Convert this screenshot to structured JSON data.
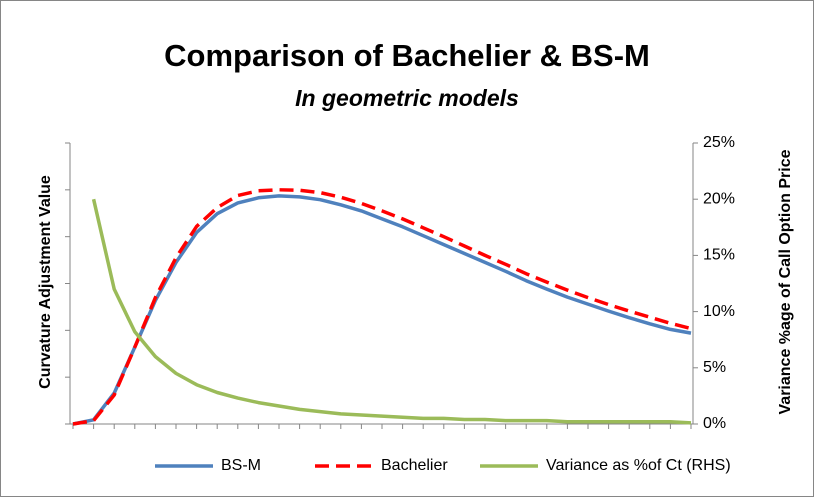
{
  "chart_data": {
    "type": "line",
    "title": "Comparison of Bachelier & BS-M",
    "subtitle": "In geometric models",
    "ylabel": "Curvature Adjustment Value",
    "y2label": "Variance %age of Call Option Price",
    "categories": [
      null,
      null,
      null,
      null,
      null,
      null,
      null,
      null,
      null,
      null,
      null,
      null,
      null,
      null,
      null,
      null,
      null,
      null,
      null,
      null,
      null,
      null,
      null,
      null,
      null,
      null,
      null,
      null,
      null,
      null,
      null
    ],
    "ylim": [
      0,
      6
    ],
    "yticks": [
      0,
      1,
      2,
      3,
      4,
      5,
      6
    ],
    "y2lim": [
      0,
      25
    ],
    "y2ticks": [
      {
        "value": 0,
        "label": "0%"
      },
      {
        "value": 5,
        "label": "5%"
      },
      {
        "value": 10,
        "label": "10%"
      },
      {
        "value": 15,
        "label": "15%"
      },
      {
        "value": 20,
        "label": "20%"
      },
      {
        "value": 25,
        "label": "25%"
      }
    ],
    "legend": "bottom",
    "series": [
      {
        "name": "BS-M",
        "color": "#4f81bd",
        "dash": false,
        "values": [
          0,
          0.09,
          0.66,
          1.64,
          2.64,
          3.45,
          4.09,
          4.49,
          4.72,
          4.83,
          4.87,
          4.85,
          4.79,
          4.68,
          4.55,
          4.38,
          4.21,
          4.02,
          3.83,
          3.64,
          3.45,
          3.26,
          3.06,
          2.88,
          2.71,
          2.56,
          2.41,
          2.27,
          2.14,
          2.02,
          1.94
        ]
      },
      {
        "name": "Bachelier",
        "color": "#ff0000",
        "dash": true,
        "values": [
          0,
          0.07,
          0.62,
          1.64,
          2.7,
          3.55,
          4.22,
          4.62,
          4.88,
          4.98,
          5.0,
          4.99,
          4.94,
          4.84,
          4.71,
          4.55,
          4.38,
          4.19,
          4.0,
          3.8,
          3.6,
          3.41,
          3.21,
          3.03,
          2.86,
          2.7,
          2.55,
          2.41,
          2.28,
          2.15,
          2.04
        ]
      },
      {
        "name": "Variance as %of Ct (RHS)",
        "color": "#9bbb59",
        "dash": false,
        "axis": "y2",
        "values": [
          null,
          20,
          12,
          8.2,
          6,
          4.5,
          3.5,
          2.8,
          2.3,
          1.9,
          1.6,
          1.3,
          1.1,
          0.9,
          0.8,
          0.7,
          0.6,
          0.5,
          0.5,
          0.4,
          0.4,
          0.3,
          0.3,
          0.3,
          0.2,
          0.2,
          0.2,
          0.2,
          0.2,
          0.2,
          0.1
        ]
      }
    ]
  }
}
